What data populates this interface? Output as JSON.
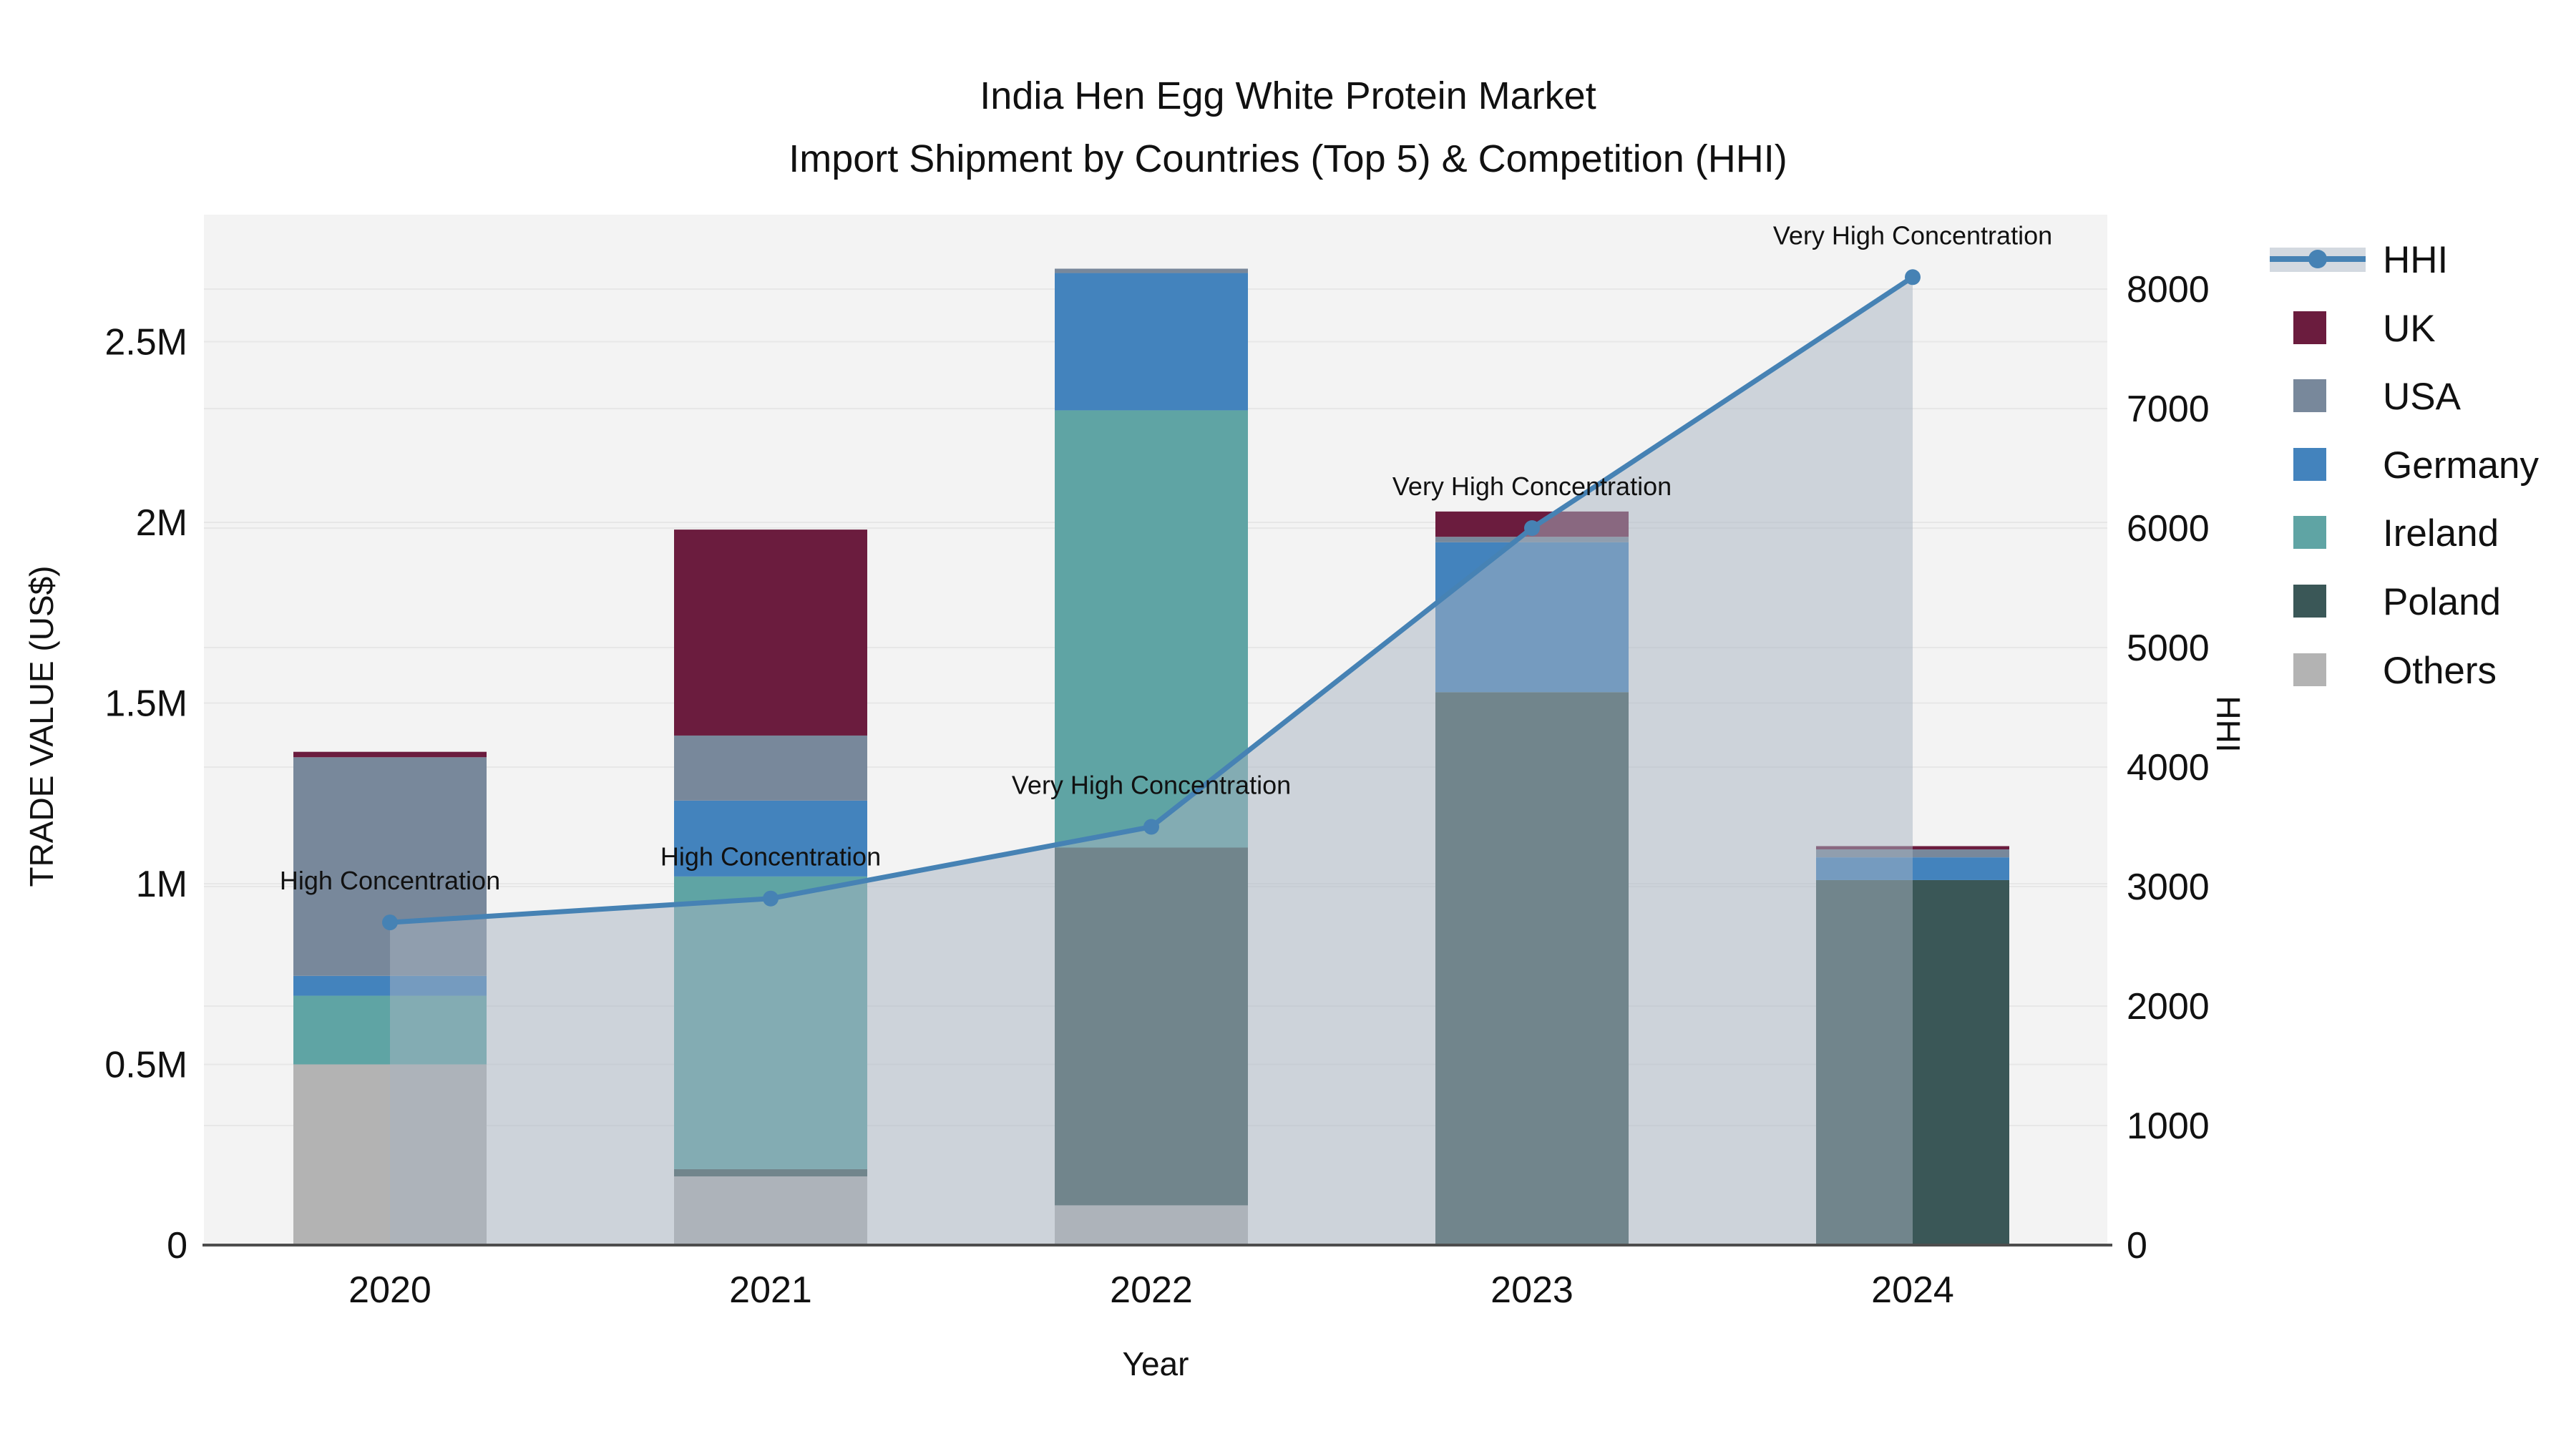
{
  "title": {
    "line1": "India Hen Egg White Protein Market",
    "line2": "Import Shipment by Countries (Top 5) & Competition (HHI)"
  },
  "axes": {
    "x_label": "Year",
    "y_left_label": "TRADE VALUE (US$)",
    "y_right_label": "HHI",
    "y_left_ticks": [
      {
        "label": "0",
        "value": 0
      },
      {
        "label": "0.5M",
        "value": 500000
      },
      {
        "label": "1M",
        "value": 1000000
      },
      {
        "label": "1.5M",
        "value": 1500000
      },
      {
        "label": "2M",
        "value": 2000000
      },
      {
        "label": "2.5M",
        "value": 2500000
      }
    ],
    "y_right_ticks": [
      {
        "label": "0",
        "value": 0
      },
      {
        "label": "1000",
        "value": 1000
      },
      {
        "label": "2000",
        "value": 2000
      },
      {
        "label": "3000",
        "value": 3000
      },
      {
        "label": "4000",
        "value": 4000
      },
      {
        "label": "5000",
        "value": 5000
      },
      {
        "label": "6000",
        "value": 6000
      },
      {
        "label": "7000",
        "value": 7000
      },
      {
        "label": "8000",
        "value": 8000
      }
    ]
  },
  "legend": {
    "items": [
      {
        "label": "HHI",
        "type": "line",
        "color": "#4682b4"
      },
      {
        "label": "UK",
        "type": "swatch",
        "color": "#6b1c3e"
      },
      {
        "label": "USA",
        "type": "swatch",
        "color": "#78889b"
      },
      {
        "label": "Germany",
        "type": "swatch",
        "color": "#4383bd"
      },
      {
        "label": "Ireland",
        "type": "swatch",
        "color": "#5fa4a4"
      },
      {
        "label": "Poland",
        "type": "swatch",
        "color": "#3a5757"
      },
      {
        "label": "Others",
        "type": "swatch",
        "color": "#b3b3b3"
      }
    ]
  },
  "chart_data": {
    "type": "bar+line",
    "categories": [
      "2020",
      "2021",
      "2022",
      "2023",
      "2024"
    ],
    "bar_stack_order_bottom_to_top": [
      "Others",
      "Poland",
      "Ireland",
      "Germany",
      "USA",
      "UK"
    ],
    "series": [
      {
        "name": "Others",
        "color": "#b3b3b3",
        "values": [
          500000,
          190000,
          110000,
          0,
          0
        ]
      },
      {
        "name": "Poland",
        "color": "#3a5757",
        "values": [
          0,
          20000,
          990000,
          1530000,
          1010000
        ]
      },
      {
        "name": "Ireland",
        "color": "#5fa4a4",
        "values": [
          190000,
          810000,
          1210000,
          0,
          0
        ]
      },
      {
        "name": "Germany",
        "color": "#4383bd",
        "values": [
          55000,
          210000,
          380000,
          415000,
          63000
        ]
      },
      {
        "name": "USA",
        "color": "#78889b",
        "values": [
          605000,
          180000,
          12000,
          15000,
          22000
        ]
      },
      {
        "name": "UK",
        "color": "#6b1c3e",
        "values": [
          15000,
          570000,
          0,
          70000,
          9000
        ]
      }
    ],
    "line_series": {
      "name": "HHI",
      "color": "#4682b4",
      "area_fill": "rgba(167,180,194,0.5)",
      "values": [
        2700,
        2900,
        3500,
        6000,
        8100
      ]
    },
    "annotations": [
      "High Concentration",
      "High Concentration",
      "Very High Concentration",
      "Very High Concentration",
      "Very High Concentration"
    ],
    "title": "India Hen Egg White Protein Market — Import Shipment by Countries (Top 5) & Competition (HHI)",
    "xlabel": "Year",
    "ylabel_left": "TRADE VALUE (US$)",
    "ylabel_right": "HHI",
    "y_left_range": [
      0,
      2851000
    ],
    "y_right_range": [
      0,
      8620
    ],
    "grid": true,
    "legend_position": "right"
  },
  "colors": {
    "plot_background": "#f3f3f3",
    "figure_background": "#ffffff",
    "gridline": "#e7e7e7",
    "axis_line": "#4d4d4d",
    "hhi_line": "#4682b4",
    "hhi_area": "rgba(167,180,194,0.5)"
  }
}
